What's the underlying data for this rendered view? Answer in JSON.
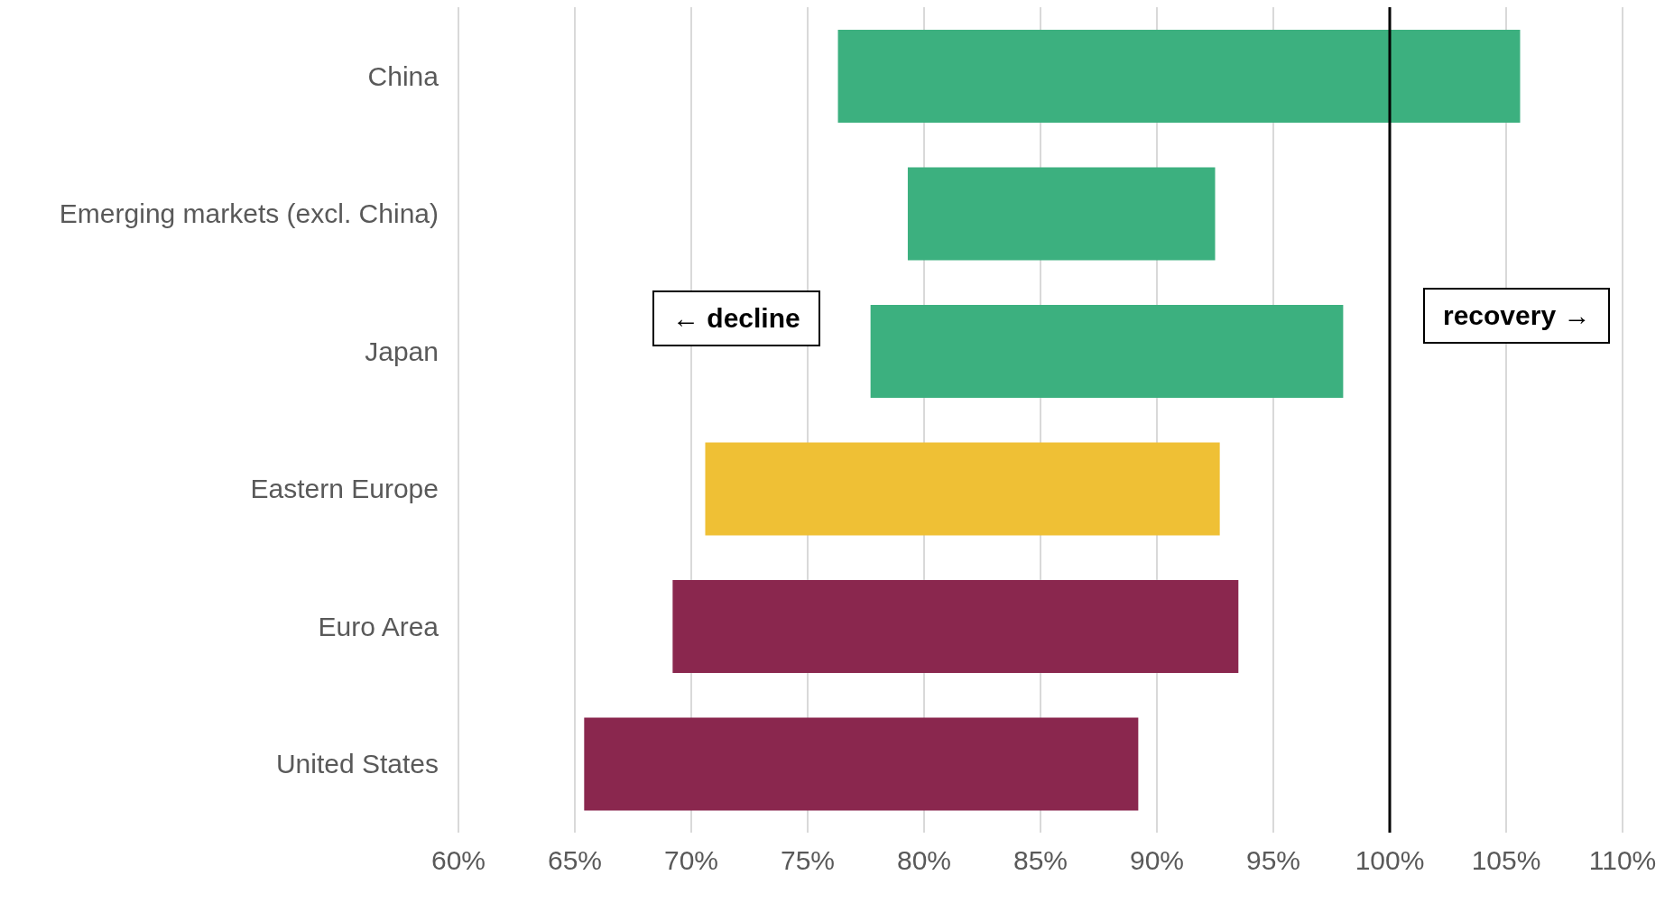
{
  "chart_data": {
    "type": "bar",
    "orientation": "horizontal",
    "categories": [
      "China",
      "Emerging markets (excl. China)",
      "Japan",
      "Eastern Europe",
      "Euro Area",
      "United States"
    ],
    "base": [
      76.3,
      79.3,
      77.7,
      70.6,
      69.2,
      65.4
    ],
    "values": [
      29.3,
      13.2,
      20.3,
      22.1,
      24.3,
      23.8
    ],
    "colors": [
      "#3cb07f",
      "#3cb07f",
      "#3cb07f",
      "#efc035",
      "#8a274e",
      "#8a274e"
    ],
    "xlim": [
      60,
      110
    ],
    "xticks": [
      {
        "value": 60,
        "label": "60%"
      },
      {
        "value": 65,
        "label": "65%"
      },
      {
        "value": 70,
        "label": "70%"
      },
      {
        "value": 75,
        "label": "75%"
      },
      {
        "value": 80,
        "label": "80%"
      },
      {
        "value": 85,
        "label": "85%"
      },
      {
        "value": 90,
        "label": "90%"
      },
      {
        "value": 95,
        "label": "95%"
      },
      {
        "value": 100,
        "label": "100%"
      },
      {
        "value": 105,
        "label": "105%"
      },
      {
        "value": 110,
        "label": "110%"
      }
    ],
    "grid": "x",
    "legend": false,
    "ref_lines": [
      {
        "axis": "x",
        "value": 100,
        "color": "#000000"
      }
    ],
    "annotations": [
      "← decline",
      "recovery →"
    ]
  }
}
